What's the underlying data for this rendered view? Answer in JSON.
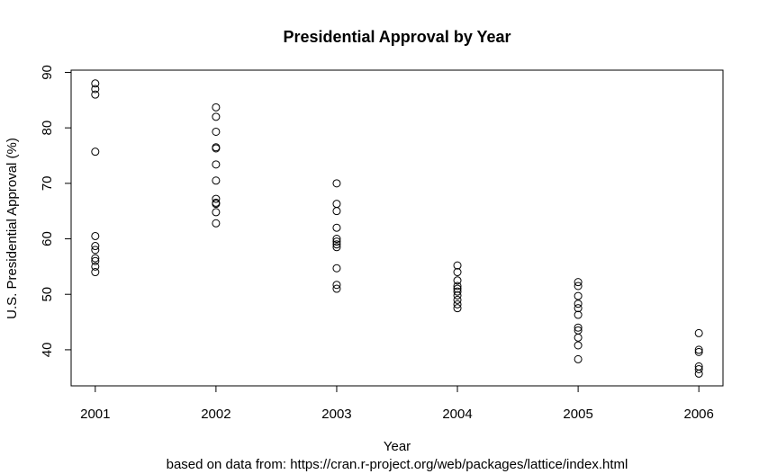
{
  "chart_data": {
    "type": "scatter",
    "title": "Presidential Approval by Year",
    "xlabel": "Year",
    "ylabel": "U.S. Presidential Approval (%)",
    "caption": "based on data from: https://cran.r-project.org/web/packages/lattice/index.html",
    "x_ticks": [
      "2001",
      "2002",
      "2003",
      "2004",
      "2005",
      "2006"
    ],
    "y_ticks": [
      40,
      50,
      60,
      70,
      80,
      90
    ],
    "xlim": [
      2000.8,
      2006.2
    ],
    "ylim": [
      33.5,
      90.4
    ],
    "grid": false,
    "series": [
      {
        "points": [
          {
            "x": 2001,
            "y": 88
          },
          {
            "x": 2001,
            "y": 87
          },
          {
            "x": 2001,
            "y": 86
          },
          {
            "x": 2001,
            "y": 75.7
          },
          {
            "x": 2001,
            "y": 60.5
          },
          {
            "x": 2001,
            "y": 58.7
          },
          {
            "x": 2001,
            "y": 58
          },
          {
            "x": 2001,
            "y": 56.5
          },
          {
            "x": 2001,
            "y": 56
          },
          {
            "x": 2001,
            "y": 55
          },
          {
            "x": 2001,
            "y": 54
          },
          {
            "x": 2002,
            "y": 83.7
          },
          {
            "x": 2002,
            "y": 82
          },
          {
            "x": 2002,
            "y": 79.3
          },
          {
            "x": 2002,
            "y": 76.5
          },
          {
            "x": 2002,
            "y": 76.3
          },
          {
            "x": 2002,
            "y": 73.4
          },
          {
            "x": 2002,
            "y": 70.5
          },
          {
            "x": 2002,
            "y": 67.2
          },
          {
            "x": 2002,
            "y": 66.5
          },
          {
            "x": 2002,
            "y": 66.3
          },
          {
            "x": 2002,
            "y": 64.8
          },
          {
            "x": 2002,
            "y": 62.8
          },
          {
            "x": 2003,
            "y": 70
          },
          {
            "x": 2003,
            "y": 66.3
          },
          {
            "x": 2003,
            "y": 65
          },
          {
            "x": 2003,
            "y": 62
          },
          {
            "x": 2003,
            "y": 60
          },
          {
            "x": 2003,
            "y": 59.5
          },
          {
            "x": 2003,
            "y": 59
          },
          {
            "x": 2003,
            "y": 58.5
          },
          {
            "x": 2003,
            "y": 54.7
          },
          {
            "x": 2003,
            "y": 51.7
          },
          {
            "x": 2003,
            "y": 51
          },
          {
            "x": 2004,
            "y": 55.2
          },
          {
            "x": 2004,
            "y": 54
          },
          {
            "x": 2004,
            "y": 52.5
          },
          {
            "x": 2004,
            "y": 51.5
          },
          {
            "x": 2004,
            "y": 51
          },
          {
            "x": 2004,
            "y": 50.5
          },
          {
            "x": 2004,
            "y": 49.8
          },
          {
            "x": 2004,
            "y": 49
          },
          {
            "x": 2004,
            "y": 48.2
          },
          {
            "x": 2004,
            "y": 47.5
          },
          {
            "x": 2005,
            "y": 52.2
          },
          {
            "x": 2005,
            "y": 51.5
          },
          {
            "x": 2005,
            "y": 49.7
          },
          {
            "x": 2005,
            "y": 48.3
          },
          {
            "x": 2005,
            "y": 47.5
          },
          {
            "x": 2005,
            "y": 46.3
          },
          {
            "x": 2005,
            "y": 44
          },
          {
            "x": 2005,
            "y": 43.5
          },
          {
            "x": 2005,
            "y": 42.2
          },
          {
            "x": 2005,
            "y": 40.8
          },
          {
            "x": 2005,
            "y": 38.3
          },
          {
            "x": 2006,
            "y": 43
          },
          {
            "x": 2006,
            "y": 40
          },
          {
            "x": 2006,
            "y": 39.6
          },
          {
            "x": 2006,
            "y": 37
          },
          {
            "x": 2006,
            "y": 36.5
          },
          {
            "x": 2006,
            "y": 35.7
          }
        ]
      }
    ]
  }
}
